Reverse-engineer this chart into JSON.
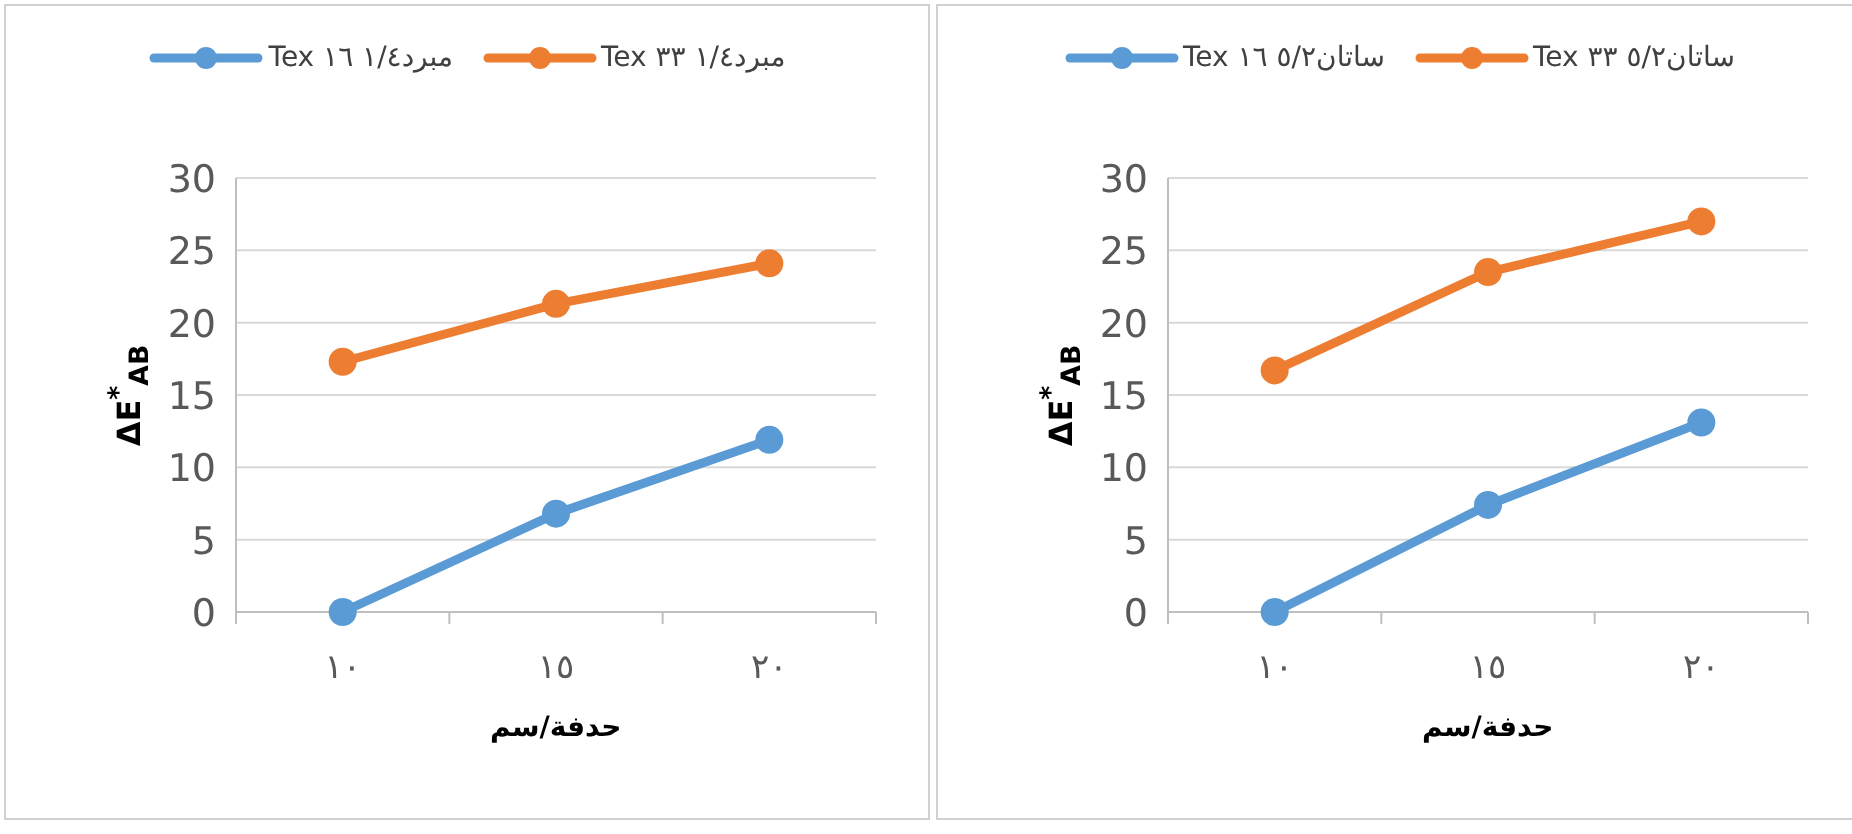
{
  "chart_data": [
    {
      "type": "line",
      "categories": [
        "١٠",
        "١٥",
        "٢٠"
      ],
      "xlabel": "حدفة/سم",
      "ylabel": "ΔE$^{*}$$_{AB}$",
      "ylim": [
        0,
        30
      ],
      "yticks": [
        0,
        5,
        10,
        15,
        20,
        25,
        30
      ],
      "grid": "y",
      "legend": "top",
      "marker": "circle",
      "line_style": "solid",
      "series": [
        {
          "name": "مبرد١/٤ ١٦ Tex",
          "color": "#5b9bd5",
          "values": [
            0,
            6.8,
            11.9
          ]
        },
        {
          "name": "مبرد١/٤ ٣٣ Tex",
          "color": "#ed7d31",
          "values": [
            17.3,
            21.3,
            24.1
          ]
        }
      ]
    },
    {
      "type": "line",
      "categories": [
        "١٠",
        "١٥",
        "٢٠"
      ],
      "xlabel": "حدفة/سم",
      "ylabel": "ΔE$^{*}$$_{AB}$",
      "ylim": [
        0,
        30
      ],
      "yticks": [
        0,
        5,
        10,
        15,
        20,
        25,
        30
      ],
      "grid": "y",
      "legend": "top",
      "marker": "circle",
      "line_style": "solid",
      "series": [
        {
          "name": "ساتان٥/٢ ١٦ Tex",
          "color": "#5b9bd5",
          "values": [
            0,
            7.4,
            13.1
          ]
        },
        {
          "name": "ساتان٥/٢ ٣٣ Tex",
          "color": "#ed7d31",
          "values": [
            16.7,
            23.5,
            27
          ]
        }
      ]
    }
  ]
}
